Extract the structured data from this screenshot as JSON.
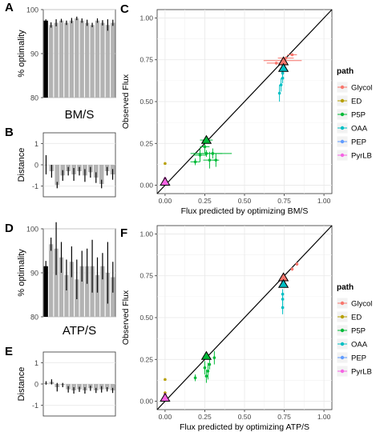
{
  "panels": [
    {
      "id": "A",
      "type": "bar",
      "ylabel": "% optimality",
      "xlabel": "BM/S",
      "ylim": [
        80,
        100
      ],
      "yticks": [
        80,
        90,
        100
      ],
      "values": [
        97.5,
        96.5,
        97.0,
        97.5,
        97.0,
        97.5,
        98.0,
        97.5,
        97.0,
        96.5,
        97.5,
        97.0,
        96.5,
        97.0
      ],
      "err": [
        0.3,
        0.6,
        0.8,
        0.4,
        0.5,
        0.6,
        0.4,
        0.5,
        0.7,
        0.5,
        0.5,
        0.6,
        1.3,
        0.7
      ],
      "highlight_index": 0
    },
    {
      "id": "B",
      "type": "bar",
      "ylabel": "Distance",
      "ylim": [
        -1.5,
        1.5
      ],
      "yticks": [
        -1,
        0,
        1
      ],
      "values": [
        0.0,
        -0.3,
        -0.95,
        -0.5,
        -0.3,
        -0.45,
        -0.3,
        -0.5,
        -0.35,
        -0.6,
        -0.9,
        -0.3,
        -0.45
      ],
      "err": [
        0.45,
        0.3,
        0.15,
        0.25,
        0.2,
        0.3,
        0.2,
        0.3,
        0.25,
        0.25,
        0.2,
        0.2,
        0.25
      ]
    },
    {
      "id": "D",
      "type": "bar",
      "ylabel": "% optimality",
      "xlabel": "ATP/S",
      "ylim": [
        80,
        100
      ],
      "yticks": [
        80,
        90,
        100
      ],
      "values": [
        91.5,
        96.5,
        95.5,
        93.5,
        89.5,
        92.5,
        88.5,
        91.5,
        91.5,
        91.5,
        89.5,
        91.5,
        90.0,
        89.0
      ],
      "err": [
        1.2,
        1.5,
        6.0,
        3.5,
        3.5,
        3.5,
        4.5,
        3.5,
        4.0,
        6.0,
        4.0,
        3.0,
        7.0,
        3.5
      ],
      "highlight_index": 0
    },
    {
      "id": "E",
      "type": "bar",
      "ylabel": "Distance",
      "ylim": [
        -1.5,
        1.5
      ],
      "yticks": [
        -1,
        0,
        1
      ],
      "values": [
        0.05,
        0.1,
        -0.15,
        -0.05,
        -0.25,
        -0.3,
        -0.25,
        -0.3,
        -0.2,
        -0.3,
        -0.25,
        -0.25,
        -0.3
      ],
      "err": [
        0.08,
        0.12,
        0.2,
        0.1,
        0.15,
        0.15,
        0.12,
        0.15,
        0.12,
        0.12,
        0.15,
        0.1,
        0.12
      ]
    }
  ],
  "scatter_panels": [
    {
      "id": "C",
      "type": "scatter",
      "xlabel": "Flux predicted by optimizing BM/S",
      "ylabel": "Observed Flux",
      "xlim": [
        -0.05,
        1.05
      ],
      "ylim": [
        -0.05,
        1.05
      ],
      "ticks": [
        0.0,
        0.25,
        0.5,
        0.75,
        1.0
      ],
      "tick_labels": [
        "0.00",
        "0.25",
        "0.50",
        "0.75",
        "1.00"
      ],
      "points": [
        {
          "path": "Glycol",
          "x": 0.74,
          "y": 0.745,
          "xe": 0.12,
          "ye": 0.0
        },
        {
          "path": "Glycol",
          "x": 0.7,
          "y": 0.73,
          "xe": 0.06,
          "ye": 0.0
        },
        {
          "path": "Glycol",
          "x": 0.8,
          "y": 0.78,
          "xe": 0.03,
          "ye": 0.0
        },
        {
          "path": "Glycol",
          "x": 0.76,
          "y": 0.76,
          "xe": 0.05,
          "ye": 0.01
        },
        {
          "path": "ED",
          "x": 0.0,
          "y": 0.13,
          "xe": 0,
          "ye": 0
        },
        {
          "path": "ED",
          "x": 0.0,
          "y": 0.02,
          "xe": 0,
          "ye": 0
        },
        {
          "path": "P5P",
          "x": 0.26,
          "y": 0.27,
          "xe": 0.04,
          "ye": 0.0
        },
        {
          "path": "P5P",
          "x": 0.19,
          "y": 0.14,
          "xe": 0.03,
          "ye": 0.02
        },
        {
          "path": "P5P",
          "x": 0.22,
          "y": 0.18,
          "xe": 0.04,
          "ye": 0.04
        },
        {
          "path": "P5P",
          "x": 0.26,
          "y": 0.19,
          "xe": 0.1,
          "ye": 0.02
        },
        {
          "path": "P5P",
          "x": 0.3,
          "y": 0.19,
          "xe": 0.12,
          "ye": 0.03
        },
        {
          "path": "P5P",
          "x": 0.28,
          "y": 0.15,
          "xe": 0.04,
          "ye": 0.05
        },
        {
          "path": "P5P",
          "x": 0.32,
          "y": 0.15,
          "xe": 0.02,
          "ye": 0.04
        },
        {
          "path": "P5P",
          "x": 0.25,
          "y": 0.23,
          "xe": 0.03,
          "ye": 0.04
        },
        {
          "path": "OAA",
          "x": 0.72,
          "y": 0.55,
          "xe": 0,
          "ye": 0.05
        },
        {
          "path": "OAA",
          "x": 0.73,
          "y": 0.6,
          "xe": 0,
          "ye": 0.04
        },
        {
          "path": "OAA",
          "x": 0.74,
          "y": 0.64,
          "xe": 0,
          "ye": 0.03
        },
        {
          "path": "OAA",
          "x": 0.74,
          "y": 0.67,
          "xe": 0,
          "ye": 0.02
        },
        {
          "path": "PEP",
          "x": 0.74,
          "y": 0.7,
          "xe": 0,
          "ye": 0.01
        },
        {
          "path": "PyrLB",
          "x": 0.0,
          "y": 0.04,
          "xe": 0.01,
          "ye": 0.01
        },
        {
          "path": "PyrLB",
          "x": 0.0,
          "y": 0.01,
          "xe": 0.01,
          "ye": 0.01
        },
        {
          "path": "PyrLB",
          "x": 0.0,
          "y": 0.03,
          "xe": 0.0,
          "ye": 0.01
        }
      ],
      "triangles": [
        {
          "path": "Glycol",
          "x": 0.745,
          "y": 0.74
        },
        {
          "path": "P5P",
          "x": 0.26,
          "y": 0.27
        },
        {
          "path": "OAA",
          "x": 0.745,
          "y": 0.7
        },
        {
          "path": "PyrLB",
          "x": 0.0,
          "y": 0.02
        }
      ]
    },
    {
      "id": "F",
      "type": "scatter",
      "xlabel": "Flux predicted by optimizing ATP/S",
      "ylabel": "Observed Flux",
      "xlim": [
        -0.05,
        1.05
      ],
      "ylim": [
        -0.05,
        1.05
      ],
      "ticks": [
        0.0,
        0.25,
        0.5,
        0.75,
        1.0
      ],
      "tick_labels": [
        "0.00",
        "0.25",
        "0.50",
        "0.75",
        "1.00"
      ],
      "points": [
        {
          "path": "Glycol",
          "x": 0.75,
          "y": 0.74,
          "xe": 0,
          "ye": 0.01
        },
        {
          "path": "Glycol",
          "x": 0.8,
          "y": 0.79,
          "xe": 0,
          "ye": 0.01
        },
        {
          "path": "Glycol",
          "x": 0.83,
          "y": 0.82,
          "xe": 0,
          "ye": 0.01
        },
        {
          "path": "ED",
          "x": 0.0,
          "y": 0.13,
          "xe": 0,
          "ye": 0
        },
        {
          "path": "ED",
          "x": 0.0,
          "y": 0.05,
          "xe": 0,
          "ye": 0
        },
        {
          "path": "P5P",
          "x": 0.26,
          "y": 0.27,
          "xe": 0,
          "ye": 0.02
        },
        {
          "path": "P5P",
          "x": 0.19,
          "y": 0.14,
          "xe": 0,
          "ye": 0.02
        },
        {
          "path": "P5P",
          "x": 0.25,
          "y": 0.2,
          "xe": 0,
          "ye": 0.04
        },
        {
          "path": "P5P",
          "x": 0.27,
          "y": 0.18,
          "xe": 0,
          "ye": 0.05
        },
        {
          "path": "P5P",
          "x": 0.26,
          "y": 0.15,
          "xe": 0,
          "ye": 0.04
        },
        {
          "path": "P5P",
          "x": 0.31,
          "y": 0.26,
          "xe": 0,
          "ye": 0.04
        },
        {
          "path": "P5P",
          "x": 0.28,
          "y": 0.22,
          "xe": 0,
          "ye": 0.03
        },
        {
          "path": "OAA",
          "x": 0.74,
          "y": 0.56,
          "xe": 0,
          "ye": 0.04
        },
        {
          "path": "OAA",
          "x": 0.74,
          "y": 0.61,
          "xe": 0,
          "ye": 0.04
        },
        {
          "path": "OAA",
          "x": 0.74,
          "y": 0.64,
          "xe": 0,
          "ye": 0.03
        },
        {
          "path": "PEP",
          "x": 0.74,
          "y": 0.71,
          "xe": 0,
          "ye": 0.01
        },
        {
          "path": "PyrLB",
          "x": 0.0,
          "y": 0.04,
          "xe": 0.01,
          "ye": 0.01
        },
        {
          "path": "PyrLB",
          "x": 0.0,
          "y": 0.01,
          "xe": 0.01,
          "ye": 0.01
        },
        {
          "path": "PyrLB",
          "x": 0.0,
          "y": 0.03,
          "xe": 0.0,
          "ye": 0.01
        }
      ],
      "triangles": [
        {
          "path": "Glycol",
          "x": 0.745,
          "y": 0.74
        },
        {
          "path": "P5P",
          "x": 0.26,
          "y": 0.27
        },
        {
          "path": "OAA",
          "x": 0.745,
          "y": 0.7
        },
        {
          "path": "PyrLB",
          "x": 0.0,
          "y": 0.02
        }
      ]
    }
  ],
  "legend": {
    "title": "path",
    "placement": "right",
    "entries": [
      {
        "name": "Glycol",
        "color": "#F8766D"
      },
      {
        "name": "ED",
        "color": "#B79F00"
      },
      {
        "name": "P5P",
        "color": "#00BA38"
      },
      {
        "name": "OAA",
        "color": "#00BFC4"
      },
      {
        "name": "PEP",
        "color": "#619CFF"
      },
      {
        "name": "PyrLB",
        "color": "#F564E3"
      }
    ]
  },
  "colors": {
    "grid": "#e8e8e8",
    "bar": "#b3b3b3",
    "highlight": "#000000"
  }
}
